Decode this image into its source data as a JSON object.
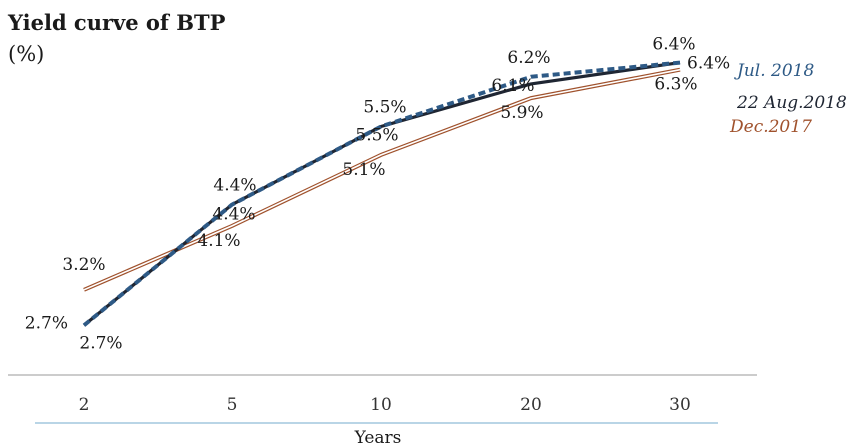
{
  "chart_data": {
    "type": "line",
    "title": "Yield curve of BTP",
    "unit_label": "(%)",
    "categories": [
      "2",
      "5",
      "10",
      "20",
      "30"
    ],
    "xlabel": "Years",
    "ylim": [
      1.0,
      7.0
    ],
    "series": [
      {
        "name": "Jul. 2018",
        "values": [
          2.7,
          4.4,
          5.5,
          6.2,
          6.4
        ],
        "labels": [
          "2.7%",
          "4.4%",
          "5.5%",
          "6.2%",
          "6.4%"
        ],
        "color": "#2e5a86",
        "style": "dashed"
      },
      {
        "name": "22 Aug.2018",
        "values": [
          2.7,
          4.4,
          5.5,
          6.1,
          6.4
        ],
        "labels": [
          "2.7%",
          "4.4%",
          "5.5%",
          "6.1%",
          "6.4%"
        ],
        "color": "#1f2633",
        "style": "solid"
      },
      {
        "name": "Dec.2017",
        "values": [
          3.2,
          4.1,
          5.1,
          5.9,
          6.3
        ],
        "labels": [
          "3.2%",
          "4.1%",
          "5.1%",
          "5.9%",
          "6.3%"
        ],
        "color": "#a0522d",
        "style": "double"
      }
    ]
  }
}
